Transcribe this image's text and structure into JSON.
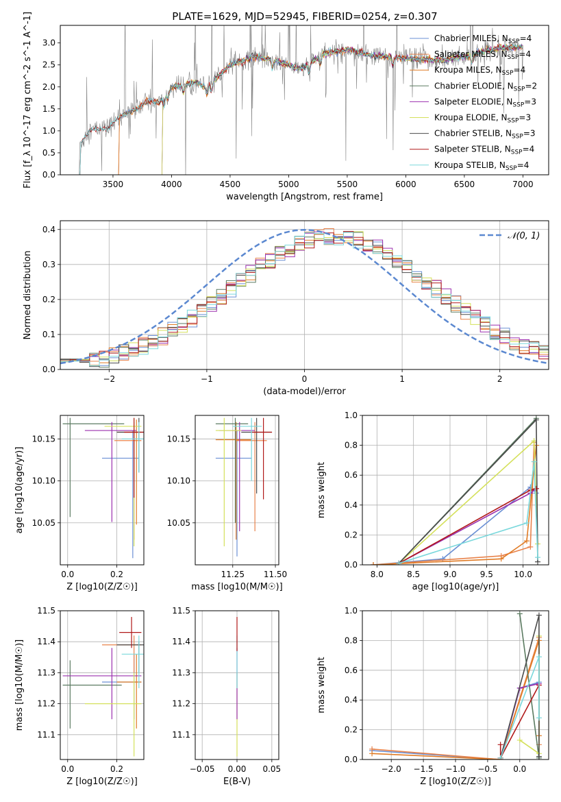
{
  "figure_title": "PLATE=1629, MJD=52945, FIBERID=0254, z=0.307",
  "colors": {
    "Chabrier MILES": "#6a8fd4",
    "Salpeter MILES": "#e8824a",
    "Kroupa MILES": "#e07b25",
    "Chabrier ELODIE": "#5a7a60",
    "Salpeter ELODIE": "#9b2fae",
    "Kroupa ELODIE": "#d4e05a",
    "Chabrier STELIB": "#4a4a4a",
    "Salpeter STELIB": "#b01818",
    "Kroupa STELIB": "#7ad8dc",
    "data": "#808080",
    "normal": "#5b88d0",
    "grid": "#b0b0b0"
  },
  "chart_data": [
    {
      "id": "spectrum",
      "type": "line",
      "title": "",
      "xlabel": "wavelength [Angstrom, rest frame]",
      "ylabel": "Flux [f_λ 10^-17 erg cm^-2 s^-1 A^-1]",
      "xlim": [
        3050,
        7220
      ],
      "ylim": [
        0,
        3.4
      ],
      "xticks": [
        3500,
        4000,
        4500,
        5000,
        5500,
        6000,
        6500,
        7000
      ],
      "yticks": [
        0.0,
        0.5,
        1.0,
        1.5,
        2.0,
        2.5,
        3.0
      ],
      "grid": false,
      "legend_position": "right",
      "continuum_points": {
        "x": [
          3200,
          3300,
          3450,
          3550,
          3700,
          3800,
          3900,
          4000,
          4100,
          4200,
          4300,
          4500,
          4700,
          4900,
          5100,
          5300,
          5500,
          5700,
          6000,
          6300,
          6600,
          6800,
          7000
        ],
        "y": [
          0.62,
          1.02,
          1.05,
          1.3,
          1.5,
          1.68,
          1.65,
          2.0,
          2.05,
          2.1,
          2.0,
          2.5,
          2.68,
          2.6,
          2.4,
          2.75,
          2.85,
          2.72,
          2.65,
          2.6,
          2.75,
          2.9,
          2.9
        ]
      },
      "series": [
        {
          "name": "Chabrier MILES",
          "nssp": "4",
          "x_start": 3540
        },
        {
          "name": "Salpeter MILES",
          "nssp": "4",
          "x_start": 3540
        },
        {
          "name": "Kroupa MILES",
          "nssp": "4",
          "x_start": 3540
        },
        {
          "name": "Chabrier ELODIE",
          "nssp": "2",
          "x_start": 3910
        },
        {
          "name": "Salpeter ELODIE",
          "nssp": "3",
          "x_start": 3910
        },
        {
          "name": "Kroupa ELODIE",
          "nssp": "3",
          "x_start": 3910
        },
        {
          "name": "Chabrier STELIB",
          "nssp": "3",
          "x_start": 3210
        },
        {
          "name": "Salpeter STELIB",
          "nssp": "4",
          "x_start": 3210
        },
        {
          "name": "Kroupa STELIB",
          "nssp": "4",
          "x_start": 3210
        }
      ]
    },
    {
      "id": "residuals",
      "type": "line",
      "xlabel": "(data-model)/error",
      "ylabel": "Normed distribution",
      "xlim": [
        -2.5,
        2.5
      ],
      "ylim": [
        0,
        0.425
      ],
      "xticks": [
        -2,
        -1,
        0,
        1,
        2
      ],
      "yticks": [
        0.0,
        0.1,
        0.2,
        0.3,
        0.4
      ],
      "grid": true,
      "legend": "𝒩(0, 1)",
      "legend_position": "top-right",
      "normal": {
        "mean": 0,
        "sigma": 1
      },
      "bin_width": 0.1
    },
    {
      "id": "age_vs_Z",
      "type": "scatter",
      "xlabel": "Z [log10(Z/Z☉)]",
      "ylabel": "age  [log10(age/yr)]",
      "xlim": [
        -0.03,
        0.31
      ],
      "ylim": [
        10.0,
        10.178
      ],
      "xticks": [
        0.0,
        0.2
      ],
      "yticks": [
        10.05,
        10.1,
        10.15
      ],
      "grid": true,
      "points": [
        {
          "series": "Chabrier MILES",
          "x": 0.265,
          "y": 10.127,
          "xlo": 0.14,
          "xhi": 0.29,
          "ylo": 10.008,
          "yhi": 10.16
        },
        {
          "series": "Salpeter MILES",
          "x": 0.27,
          "y": 10.148,
          "xlo": 0.19,
          "xhi": 0.3,
          "ylo": 10.03,
          "yhi": 10.17
        },
        {
          "series": "Kroupa MILES",
          "x": 0.28,
          "y": 10.158,
          "xlo": 0.2,
          "xhi": 0.3,
          "ylo": 10.048,
          "yhi": 10.173
        },
        {
          "series": "Chabrier ELODIE",
          "x": 0.01,
          "y": 10.168,
          "xlo": -0.02,
          "xhi": 0.23,
          "ylo": 10.057,
          "yhi": 10.175
        },
        {
          "series": "Salpeter ELODIE",
          "x": 0.18,
          "y": 10.16,
          "xlo": 0.07,
          "xhi": 0.28,
          "ylo": 10.051,
          "yhi": 10.17
        },
        {
          "series": "Kroupa ELODIE",
          "x": 0.27,
          "y": 10.165,
          "xlo": 0.15,
          "xhi": 0.3,
          "ylo": 10.022,
          "yhi": 10.175
        },
        {
          "series": "Chabrier STELIB",
          "x": 0.29,
          "y": 10.158,
          "xlo": 0.2,
          "xhi": 0.31,
          "ylo": 10.11,
          "yhi": 10.175
        },
        {
          "series": "Salpeter STELIB",
          "x": 0.27,
          "y": 10.158,
          "xlo": 0.23,
          "xhi": 0.31,
          "ylo": 10.08,
          "yhi": 10.175
        },
        {
          "series": "Kroupa STELIB",
          "x": 0.29,
          "y": 10.15,
          "xlo": 0.22,
          "xhi": 0.31,
          "ylo": 10.11,
          "yhi": 10.17
        }
      ]
    },
    {
      "id": "age_vs_mass",
      "type": "scatter",
      "xlabel": "mass [log10(M/M☉)]",
      "ylabel": "",
      "xlim": [
        11.03,
        11.52
      ],
      "ylim": [
        10.0,
        10.178
      ],
      "xticks": [
        11.25,
        11.5
      ],
      "yticks": [
        10.05,
        10.1,
        10.15
      ],
      "grid": true,
      "points": [
        {
          "series": "Chabrier MILES",
          "x": 11.275,
          "y": 10.127,
          "xlo": 11.15,
          "xhi": 11.36,
          "ylo": 10.01,
          "yhi": 10.16
        },
        {
          "series": "Salpeter MILES",
          "x": 11.38,
          "y": 10.148,
          "xlo": 11.27,
          "xhi": 11.45,
          "ylo": 10.04,
          "yhi": 10.17
        },
        {
          "series": "Kroupa MILES",
          "x": 11.27,
          "y": 10.149,
          "xlo": 11.15,
          "xhi": 11.36,
          "ylo": 10.03,
          "yhi": 10.17
        },
        {
          "series": "Chabrier ELODIE",
          "x": 11.265,
          "y": 10.168,
          "xlo": 11.15,
          "xhi": 11.34,
          "ylo": 10.05,
          "yhi": 10.175
        },
        {
          "series": "Salpeter ELODIE",
          "x": 11.29,
          "y": 10.16,
          "xlo": 11.17,
          "xhi": 11.38,
          "ylo": 10.04,
          "yhi": 10.17
        },
        {
          "series": "Kroupa ELODIE",
          "x": 11.2,
          "y": 10.16,
          "xlo": 11.15,
          "xhi": 11.3,
          "ylo": 10.022,
          "yhi": 10.175
        },
        {
          "series": "Chabrier STELIB",
          "x": 11.39,
          "y": 10.158,
          "xlo": 11.3,
          "xhi": 11.48,
          "ylo": 10.085,
          "yhi": 10.175
        },
        {
          "series": "Salpeter STELIB",
          "x": 11.43,
          "y": 10.158,
          "xlo": 11.36,
          "xhi": 11.48,
          "ylo": 10.078,
          "yhi": 10.175
        },
        {
          "series": "Kroupa STELIB",
          "x": 11.36,
          "y": 10.165,
          "xlo": 11.25,
          "xhi": 11.42,
          "ylo": 10.1,
          "yhi": 10.175
        }
      ]
    },
    {
      "id": "weight_vs_age",
      "type": "line",
      "xlabel": "age  [log10(age/yr)]",
      "ylabel": "mass weight",
      "xlim": [
        7.8,
        10.35
      ],
      "ylim": [
        0,
        1.0
      ],
      "xticks": [
        8.0,
        8.5,
        9.0,
        9.5,
        10.0
      ],
      "yticks": [
        0.0,
        0.2,
        0.4,
        0.6,
        0.8,
        1.0
      ],
      "grid": true,
      "series": [
        {
          "name": "Chabrier MILES",
          "x": [
            7.95,
            8.9,
            10.1,
            10.18
          ],
          "y": [
            0.0,
            0.04,
            0.52,
            0.48
          ]
        },
        {
          "name": "Salpeter MILES",
          "x": [
            7.95,
            9.7,
            10.1,
            10.15
          ],
          "y": [
            0.0,
            0.06,
            0.12,
            0.82
          ]
        },
        {
          "name": "Kroupa MILES",
          "x": [
            7.95,
            9.7,
            10.05,
            10.18
          ],
          "y": [
            0.0,
            0.04,
            0.16,
            0.8
          ]
        },
        {
          "name": "Chabrier ELODIE",
          "x": [
            8.3,
            10.18
          ],
          "y": [
            0.01,
            0.98
          ]
        },
        {
          "name": "Salpeter ELODIE",
          "x": [
            8.3,
            10.1,
            10.18
          ],
          "y": [
            0.01,
            0.48,
            0.51
          ]
        },
        {
          "name": "Kroupa ELODIE",
          "x": [
            8.3,
            10.15,
            10.2
          ],
          "y": [
            0.01,
            0.83,
            0.14
          ]
        },
        {
          "name": "Chabrier STELIB",
          "x": [
            8.3,
            10.18,
            10.2
          ],
          "y": [
            0.01,
            0.97,
            0.02
          ]
        },
        {
          "name": "Salpeter STELIB",
          "x": [
            8.3,
            10.1,
            10.18
          ],
          "y": [
            0.01,
            0.5,
            0.51
          ]
        },
        {
          "name": "Kroupa STELIB",
          "x": [
            8.3,
            10.05,
            10.15,
            10.2
          ],
          "y": [
            0.01,
            0.28,
            0.69,
            0.05
          ]
        }
      ]
    },
    {
      "id": "mass_vs_Z",
      "type": "scatter",
      "xlabel": "Z [log10(Z/Z☉)]",
      "ylabel": "mass [log10(M/M☉)]",
      "xlim": [
        -0.03,
        0.31
      ],
      "ylim": [
        11.02,
        11.5
      ],
      "xticks": [
        0.0,
        0.2
      ],
      "yticks": [
        11.1,
        11.2,
        11.3,
        11.4,
        11.5
      ],
      "grid": true,
      "points": [
        {
          "series": "Chabrier MILES",
          "x": 0.27,
          "y": 11.27,
          "xlo": 0.14,
          "xhi": 0.3,
          "ylo": 11.15,
          "yhi": 11.36
        },
        {
          "series": "Salpeter MILES",
          "x": 0.27,
          "y": 11.39,
          "xlo": 0.14,
          "xhi": 0.3,
          "ylo": 11.3,
          "yhi": 11.42
        },
        {
          "series": "Kroupa MILES",
          "x": 0.28,
          "y": 11.27,
          "xlo": 0.2,
          "xhi": 0.3,
          "ylo": 11.12,
          "yhi": 11.36
        },
        {
          "series": "Chabrier ELODIE",
          "x": 0.01,
          "y": 11.26,
          "xlo": -0.02,
          "xhi": 0.22,
          "ylo": 11.12,
          "yhi": 11.34
        },
        {
          "series": "Salpeter ELODIE",
          "x": 0.18,
          "y": 11.29,
          "xlo": -0.02,
          "xhi": 0.3,
          "ylo": 11.15,
          "yhi": 11.38
        },
        {
          "series": "Kroupa ELODIE",
          "x": 0.27,
          "y": 11.2,
          "xlo": 0.07,
          "xhi": 0.3,
          "ylo": 11.03,
          "yhi": 11.3
        },
        {
          "series": "Chabrier STELIB",
          "x": 0.29,
          "y": 11.39,
          "xlo": 0.2,
          "xhi": 0.31,
          "ylo": 11.3,
          "yhi": 11.4
        },
        {
          "series": "Salpeter STELIB",
          "x": 0.26,
          "y": 11.43,
          "xlo": 0.21,
          "xhi": 0.3,
          "ylo": 11.38,
          "yhi": 11.48
        },
        {
          "series": "Kroupa STELIB",
          "x": 0.29,
          "y": 11.36,
          "xlo": 0.22,
          "xhi": 0.31,
          "ylo": 11.25,
          "yhi": 11.42
        }
      ]
    },
    {
      "id": "mass_vs_ebv",
      "type": "scatter",
      "xlabel": "E(B-V)",
      "ylabel": "",
      "xlim": [
        -0.06,
        0.06
      ],
      "ylim": [
        11.02,
        11.5
      ],
      "xticks": [
        -0.05,
        0.0,
        0.05
      ],
      "yticks": [
        11.1,
        11.2,
        11.3,
        11.4,
        11.5
      ],
      "grid": true,
      "points": [
        {
          "series": "Kroupa ELODIE",
          "x": 0.0,
          "y": 11.2,
          "xlo": 0.0,
          "xhi": 0.0,
          "ylo": 11.03,
          "yhi": 11.3
        },
        {
          "series": "Salpeter ELODIE",
          "x": 0.0,
          "y": 11.29,
          "xlo": 0.0,
          "xhi": 0.0,
          "ylo": 11.15,
          "yhi": 11.38
        },
        {
          "series": "Kroupa STELIB",
          "x": 0.0,
          "y": 11.36,
          "xlo": 0.0,
          "xhi": 0.0,
          "ylo": 11.25,
          "yhi": 11.42
        },
        {
          "series": "Salpeter STELIB",
          "x": 0.0,
          "y": 11.43,
          "xlo": 0.0,
          "xhi": 0.0,
          "ylo": 11.37,
          "yhi": 11.48
        }
      ]
    },
    {
      "id": "weight_vs_Z",
      "type": "line",
      "xlabel": "Z [log10(Z/Z☉)]",
      "ylabel": "mass weight",
      "xlim": [
        -2.45,
        0.45
      ],
      "ylim": [
        0,
        1.0
      ],
      "xticks": [
        -2.0,
        -1.5,
        -1.0,
        -0.5,
        0.0
      ],
      "yticks": [
        0.0,
        0.2,
        0.4,
        0.6,
        0.8,
        1.0
      ],
      "grid": true,
      "series": [
        {
          "name": "Chabrier MILES",
          "x": [
            -2.3,
            -0.3,
            0.0,
            0.3
          ],
          "y": [
            0.06,
            0.0,
            0.48,
            0.52
          ]
        },
        {
          "name": "Salpeter MILES",
          "x": [
            -2.3,
            -0.3,
            0.3,
            0.3
          ],
          "y": [
            0.07,
            0.0,
            0.82,
            0.1
          ]
        },
        {
          "name": "Kroupa MILES",
          "x": [
            -2.3,
            -0.3,
            0.3,
            0.3
          ],
          "y": [
            0.04,
            0.0,
            0.8,
            0.16
          ]
        },
        {
          "name": "Chabrier ELODIE",
          "x": [
            0.0,
            0.3
          ],
          "y": [
            0.98,
            0.01
          ]
        },
        {
          "name": "Salpeter ELODIE",
          "x": [
            -0.3,
            0.0,
            0.3
          ],
          "y": [
            0.01,
            0.48,
            0.51
          ]
        },
        {
          "name": "Kroupa ELODIE",
          "x": [
            0.0,
            0.3,
            0.3
          ],
          "y": [
            0.13,
            0.04,
            0.83
          ]
        },
        {
          "name": "Chabrier STELIB",
          "x": [
            -0.3,
            0.3,
            0.3
          ],
          "y": [
            0.01,
            0.97,
            0.02
          ]
        },
        {
          "name": "Salpeter STELIB",
          "x": [
            -0.3,
            -0.3,
            0.3
          ],
          "y": [
            0.1,
            0.01,
            0.5
          ]
        },
        {
          "name": "Kroupa STELIB",
          "x": [
            -0.3,
            0.3,
            0.3
          ],
          "y": [
            0.01,
            0.69,
            0.28
          ]
        }
      ]
    }
  ]
}
